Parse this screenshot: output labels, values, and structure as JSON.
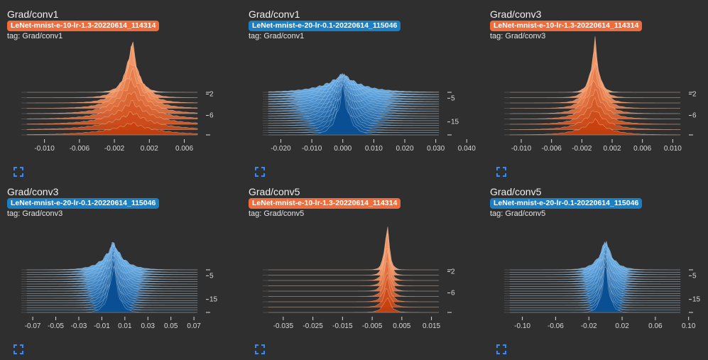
{
  "colors": {
    "run_orange": "#ef6c3c",
    "run_blue": "#1a7fc3",
    "background": "#2f2f2f",
    "accent_icon": "#2f8cff"
  },
  "panels": [
    {
      "title": "Grad/conv1",
      "run": "LeNet-mnist-e-10-lr-1.3-20220614_114314",
      "run_color": "orange",
      "tag": "tag: Grad/conv1",
      "expand_icon": "fullscreen-icon",
      "chart_data": {
        "type": "histogram-ridgeline",
        "x_ticks": [
          "-0.010",
          "-0.006",
          "-0.002",
          "0.002",
          "0.006"
        ],
        "x_range": [
          -0.012,
          0.0075
        ],
        "step_ticks": [
          "2",
          "6"
        ],
        "num_steps": 9,
        "center": 0.0,
        "spread_start": 0.0009,
        "spread_end": 0.004,
        "peak_start": 1.0,
        "peak_end": 0.22
      }
    },
    {
      "title": "Grad/conv1",
      "run": "LeNet-mnist-e-20-lr-0.1-20220614_115046",
      "run_color": "blue",
      "tag": "tag: Grad/conv1",
      "expand_icon": "fullscreen-icon",
      "chart_data": {
        "type": "histogram-ridgeline",
        "x_ticks": [
          "-0.020",
          "-0.010",
          "0.000",
          "0.010",
          "0.020",
          "0.030",
          "0.040"
        ],
        "x_range": [
          -0.024,
          0.031
        ],
        "step_ticks": [
          "5",
          "15"
        ],
        "num_steps": 19,
        "center": 0.0,
        "spread_start": 0.0085,
        "spread_end": 0.0028,
        "peak_start": 0.33,
        "peak_end": 0.9
      }
    },
    {
      "title": "Grad/conv3",
      "run": "LeNet-mnist-e-10-lr-1.3-20220614_114314",
      "run_color": "orange",
      "tag": "tag: Grad/conv3",
      "expand_icon": "fullscreen-icon",
      "chart_data": {
        "type": "histogram-ridgeline",
        "x_ticks": [
          "-0.010",
          "-0.006",
          "-0.002",
          "0.002",
          "0.006",
          "0.010"
        ],
        "x_range": [
          -0.0115,
          0.011
        ],
        "step_ticks": [
          "2",
          "6"
        ],
        "num_steps": 9,
        "center": -0.0003,
        "spread_start": 0.0007,
        "spread_end": 0.0026,
        "peak_start": 1.0,
        "peak_end": 0.28
      }
    },
    {
      "title": "Grad/conv3",
      "run": "LeNet-mnist-e-20-lr-0.1-20220614_115046",
      "run_color": "blue",
      "tag": "tag: Grad/conv3",
      "expand_icon": "fullscreen-icon",
      "chart_data": {
        "type": "histogram-ridgeline",
        "x_ticks": [
          "-0.07",
          "-0.05",
          "-0.03",
          "-0.01",
          "0.01",
          "0.03",
          "0.05",
          "0.07"
        ],
        "x_range": [
          -0.075,
          0.073
        ],
        "step_ticks": [
          "5",
          "15"
        ],
        "num_steps": 19,
        "center": 0.0,
        "spread_start": 0.012,
        "spread_end": 0.0055,
        "peak_start": 0.5,
        "peak_end": 0.95
      }
    },
    {
      "title": "Grad/conv5",
      "run": "LeNet-mnist-e-10-lr-1.3-20220614_114314",
      "run_color": "orange",
      "tag": "tag: Grad/conv5",
      "expand_icon": "fullscreen-icon",
      "chart_data": {
        "type": "histogram-ridgeline",
        "x_ticks": [
          "-0.035",
          "-0.025",
          "-0.015",
          "-0.005",
          "0.005",
          "0.015"
        ],
        "x_range": [
          -0.04,
          0.0175
        ],
        "step_ticks": [
          "2",
          "6"
        ],
        "num_steps": 9,
        "center": 0.0,
        "spread_start": 0.0011,
        "spread_end": 0.0018,
        "peak_start": 1.0,
        "peak_end": 0.32
      }
    },
    {
      "title": "Grad/conv5",
      "run": "LeNet-mnist-e-20-lr-0.1-20220614_115046",
      "run_color": "blue",
      "tag": "tag: Grad/conv5",
      "expand_icon": "fullscreen-icon",
      "chart_data": {
        "type": "histogram-ridgeline",
        "x_ticks": [
          "-0.10",
          "-0.06",
          "-0.02",
          "0.02",
          "0.06",
          "0.10"
        ],
        "x_range": [
          -0.115,
          0.09
        ],
        "step_ticks": [
          "5",
          "15"
        ],
        "num_steps": 19,
        "center": 0.0,
        "spread_start": 0.012,
        "spread_end": 0.006,
        "peak_start": 0.55,
        "peak_end": 0.95
      }
    }
  ]
}
